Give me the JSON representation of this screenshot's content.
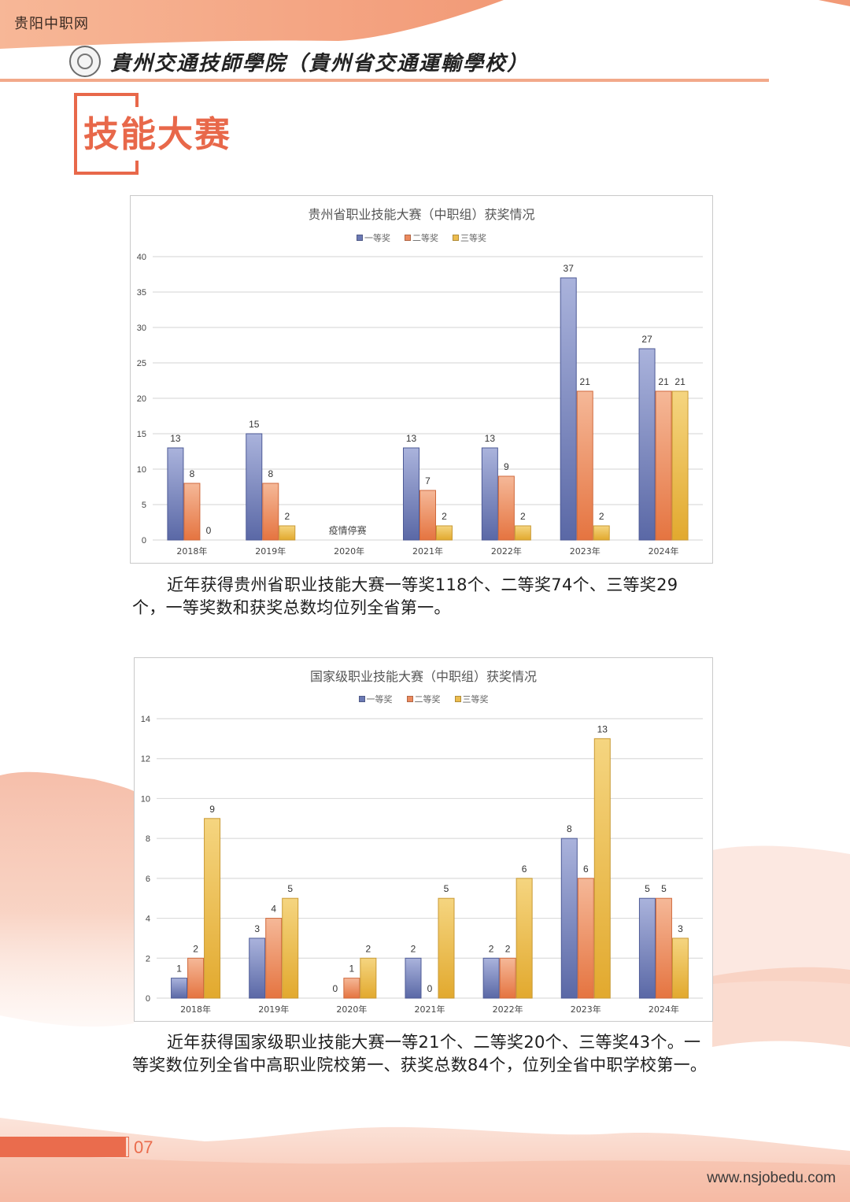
{
  "header": {
    "site_name": "贵阳中职网",
    "school_name": "貴州交通技師學院（貴州省交通運輸學校）",
    "logo_icon": "school-emblem-icon"
  },
  "section": {
    "title": "技能大赛"
  },
  "colors": {
    "accent": "#e8684a",
    "first_prize": "#6b79b4",
    "second_prize": "#ec8a5e",
    "third_prize": "#ecbc4e"
  },
  "charts": [
    {
      "title": "贵州省职业技能大赛（中职组）获奖情况",
      "legend": [
        "一等奖",
        "二等奖",
        "三等奖"
      ],
      "note_2020": "疫情停赛",
      "paragraph": "近年获得贵州省职业技能大赛一等奖118个、二等奖74个、三等奖29个，一等奖数和获奖总数均位列全省第一。"
    },
    {
      "title": "国家级职业技能大赛（中职组）获奖情况",
      "legend": [
        "一等奖",
        "二等奖",
        "三等奖"
      ],
      "paragraph": "近年获得国家级职业技能大赛一等21个、二等奖20个、三等奖43个。一等奖数位列全省中高职业院校第一、获奖总数84个，位列全省中职学校第一。"
    }
  ],
  "chart_data": [
    {
      "type": "bar",
      "title": "贵州省职业技能大赛（中职组）获奖情况",
      "xlabel": "",
      "ylabel": "",
      "categories": [
        "2018年",
        "2019年",
        "2020年",
        "2021年",
        "2022年",
        "2023年",
        "2024年"
      ],
      "series": [
        {
          "name": "一等奖",
          "values": [
            13,
            15,
            null,
            13,
            13,
            37,
            27
          ]
        },
        {
          "name": "二等奖",
          "values": [
            8,
            8,
            null,
            7,
            9,
            21,
            21
          ]
        },
        {
          "name": "三等奖",
          "values": [
            0,
            2,
            null,
            2,
            2,
            2,
            21
          ]
        }
      ],
      "yticks": [
        0,
        5,
        10,
        15,
        20,
        25,
        30,
        35,
        40
      ],
      "ylim": [
        0,
        40
      ],
      "grid": true,
      "legend_position": "top",
      "annotations": [
        {
          "category": "2020年",
          "text": "疫情停赛"
        }
      ]
    },
    {
      "type": "bar",
      "title": "国家级职业技能大赛（中职组）获奖情况",
      "xlabel": "",
      "ylabel": "",
      "categories": [
        "2018年",
        "2019年",
        "2020年",
        "2021年",
        "2022年",
        "2023年",
        "2024年"
      ],
      "series": [
        {
          "name": "一等奖",
          "values": [
            1,
            3,
            0,
            2,
            2,
            8,
            5
          ]
        },
        {
          "name": "二等奖",
          "values": [
            2,
            4,
            1,
            0,
            2,
            6,
            5
          ]
        },
        {
          "name": "三等奖",
          "values": [
            9,
            5,
            2,
            5,
            6,
            13,
            3
          ]
        }
      ],
      "yticks": [
        0,
        2,
        4,
        6,
        8,
        10,
        12,
        14
      ],
      "ylim": [
        0,
        14
      ],
      "grid": true,
      "legend_position": "top"
    }
  ],
  "footer": {
    "page_number": "07",
    "url": "www.nsjobedu.com"
  }
}
